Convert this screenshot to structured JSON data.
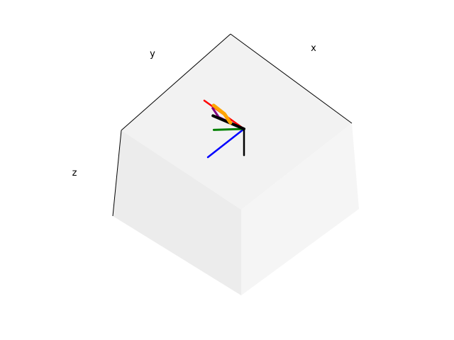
{
  "chart_data": {
    "type": "3d-line",
    "title": "",
    "xlabel": "x",
    "ylabel": "y",
    "zlabel": "z",
    "grid": false,
    "pane_colors": {
      "top": "#f2f2f2",
      "left": "#ececec",
      "right": "#f5f5f5"
    },
    "series": [
      {
        "color": "#ff0000",
        "points": [
          [
            0,
            0,
            0
          ],
          [
            1,
            0,
            0
          ]
        ]
      },
      {
        "color": "#0000ff",
        "points": [
          [
            0,
            0,
            0
          ],
          [
            0,
            1,
            0
          ]
        ]
      },
      {
        "color": "#000000",
        "points": [
          [
            0,
            0,
            0
          ],
          [
            0,
            0,
            -0.7
          ]
        ]
      },
      {
        "color": "#008000",
        "points": [
          [
            0,
            0,
            0
          ],
          [
            0.35,
            0.45,
            0.05
          ]
        ]
      },
      {
        "color": "#800080",
        "points": [
          [
            0,
            0,
            0
          ],
          [
            0.5,
            0.15,
            0.05
          ],
          [
            0.7,
            0.1,
            0.1
          ]
        ]
      },
      {
        "color": "#000000",
        "points": [
          [
            0,
            0,
            0
          ],
          [
            0.6,
            0.2,
            0.05
          ]
        ]
      },
      {
        "color": "#ffa500",
        "points": [
          [
            0.25,
            0.1,
            0.05
          ],
          [
            0.45,
            0.05,
            0.1
          ],
          [
            0.72,
            0.05,
            0.12
          ]
        ]
      }
    ]
  }
}
